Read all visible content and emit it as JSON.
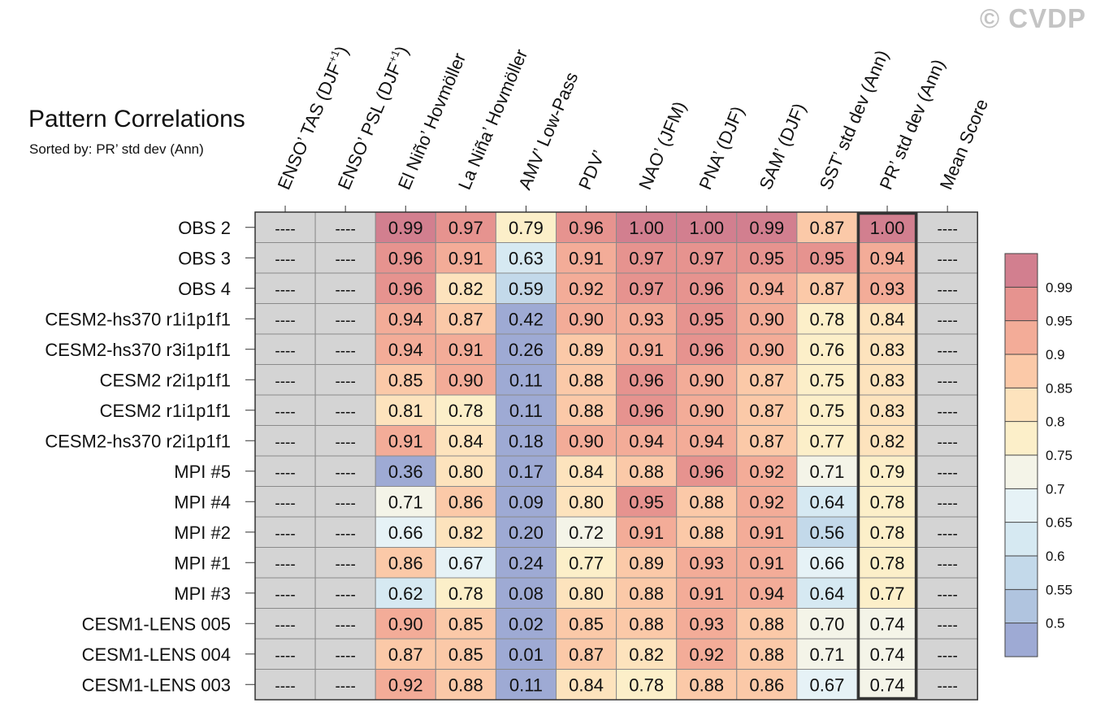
{
  "watermark": "© CVDP",
  "chart_data": {
    "type": "heatmap",
    "title": "Pattern Correlations",
    "subtitle": "Sorted by: PR’ std dev (Ann)",
    "columns": [
      {
        "base": "ENSO’ TAS (DJF",
        "sup": "+1",
        "tail": ")"
      },
      {
        "base": "ENSO’ PSL (DJF",
        "sup": "+1",
        "tail": ")"
      },
      {
        "base": "El Niño’ Hovmöller"
      },
      {
        "base": "La Niña’ Hovmöller"
      },
      {
        "base": "AMV’ Low-Pass"
      },
      {
        "base": "PDV’"
      },
      {
        "base": "NAO’ (JFM)"
      },
      {
        "base": "PNA’ (DJF)"
      },
      {
        "base": "SAM’ (DJF)"
      },
      {
        "base": "SST’ std dev (Ann)"
      },
      {
        "base": "PR’ std dev (Ann)"
      },
      {
        "base": "Mean Score"
      }
    ],
    "rows": [
      "OBS 2",
      "OBS 3",
      "OBS 4",
      "CESM2-hs370 r1i1p1f1",
      "CESM2-hs370 r3i1p1f1",
      "CESM2 r2i1p1f1",
      "CESM2 r1i1p1f1",
      "CESM2-hs370 r2i1p1f1",
      "MPI #5",
      "MPI #4",
      "MPI #2",
      "MPI #1",
      "MPI #3",
      "CESM1-LENS 005",
      "CESM1-LENS 004",
      "CESM1-LENS 003"
    ],
    "values": [
      [
        null,
        null,
        0.99,
        0.97,
        0.79,
        0.96,
        1.0,
        1.0,
        0.99,
        0.87,
        1.0,
        null
      ],
      [
        null,
        null,
        0.96,
        0.91,
        0.63,
        0.91,
        0.97,
        0.97,
        0.95,
        0.95,
        0.94,
        null
      ],
      [
        null,
        null,
        0.96,
        0.82,
        0.59,
        0.92,
        0.97,
        0.96,
        0.94,
        0.87,
        0.93,
        null
      ],
      [
        null,
        null,
        0.94,
        0.87,
        0.42,
        0.9,
        0.93,
        0.95,
        0.9,
        0.78,
        0.84,
        null
      ],
      [
        null,
        null,
        0.94,
        0.91,
        0.26,
        0.89,
        0.91,
        0.96,
        0.9,
        0.76,
        0.83,
        null
      ],
      [
        null,
        null,
        0.85,
        0.9,
        0.11,
        0.88,
        0.96,
        0.9,
        0.87,
        0.75,
        0.83,
        null
      ],
      [
        null,
        null,
        0.81,
        0.78,
        0.11,
        0.88,
        0.96,
        0.9,
        0.87,
        0.75,
        0.83,
        null
      ],
      [
        null,
        null,
        0.91,
        0.84,
        0.18,
        0.9,
        0.94,
        0.94,
        0.87,
        0.77,
        0.82,
        null
      ],
      [
        null,
        null,
        0.36,
        0.8,
        0.17,
        0.84,
        0.88,
        0.96,
        0.92,
        0.71,
        0.79,
        null
      ],
      [
        null,
        null,
        0.71,
        0.86,
        0.09,
        0.8,
        0.95,
        0.88,
        0.92,
        0.64,
        0.78,
        null
      ],
      [
        null,
        null,
        0.66,
        0.82,
        0.2,
        0.72,
        0.91,
        0.88,
        0.91,
        0.56,
        0.78,
        null
      ],
      [
        null,
        null,
        0.86,
        0.67,
        0.24,
        0.77,
        0.89,
        0.93,
        0.91,
        0.66,
        0.78,
        null
      ],
      [
        null,
        null,
        0.62,
        0.78,
        0.08,
        0.8,
        0.88,
        0.91,
        0.94,
        0.64,
        0.77,
        null
      ],
      [
        null,
        null,
        0.9,
        0.85,
        0.02,
        0.85,
        0.88,
        0.93,
        0.88,
        0.7,
        0.74,
        null
      ],
      [
        null,
        null,
        0.87,
        0.85,
        0.01,
        0.87,
        0.82,
        0.92,
        0.88,
        0.71,
        0.74,
        null
      ],
      [
        null,
        null,
        0.92,
        0.88,
        0.11,
        0.84,
        0.78,
        0.88,
        0.86,
        0.67,
        0.74,
        null
      ]
    ],
    "missing_label": "----",
    "highlight_column": "PR’ std dev (Ann)",
    "colorbar": {
      "levels": [
        0.5,
        0.55,
        0.6,
        0.65,
        0.7,
        0.75,
        0.8,
        0.85,
        0.9,
        0.95,
        0.99
      ],
      "labels": [
        "0.5",
        "0.55",
        "0.6",
        "0.65",
        "0.7",
        "0.75",
        "0.8",
        "0.85",
        "0.9",
        "0.95",
        "0.99"
      ],
      "colors": [
        "#9eaad4",
        "#b0c4df",
        "#c3d9ea",
        "#d6e9f2",
        "#e6f2f6",
        "#f4f4e8",
        "#fcefc9",
        "#fde3bd",
        "#fbc9a8",
        "#f3ac98",
        "#e6938f",
        "#d27f8f"
      ]
    },
    "missing_color": "#d4d4d4"
  }
}
